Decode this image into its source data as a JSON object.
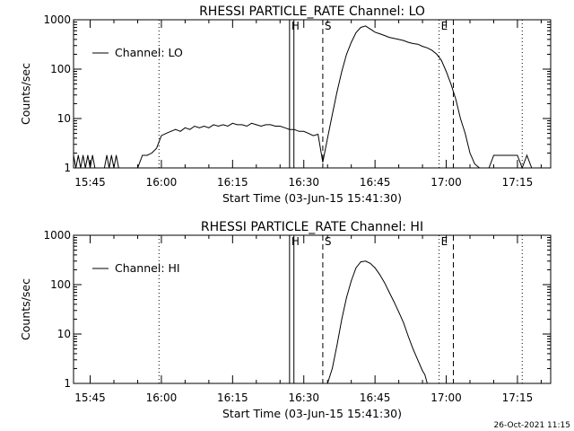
{
  "footer_timestamp": "26-Oct-2021 11:15",
  "chart_data": [
    {
      "type": "line",
      "title": "RHESSI PARTICLE_RATE Channel: LO",
      "xlabel": "Start Time (03-Jun-15 15:41:30)",
      "ylabel": "Counts/sec",
      "legend": "Channel: LO",
      "legend_position": "top-left",
      "y_scale": "log",
      "ylim": [
        1,
        1000
      ],
      "y_ticks": [
        {
          "v": 1,
          "label": "1"
        },
        {
          "v": 10,
          "label": "10"
        },
        {
          "v": 100,
          "label": "100"
        },
        {
          "v": 1000,
          "label": "1000"
        }
      ],
      "xlim": [
        "15:41:30",
        "17:22:00"
      ],
      "x_ticks": [
        {
          "t": "15:45",
          "label": "15:45"
        },
        {
          "t": "16:00",
          "label": "16:00"
        },
        {
          "t": "16:15",
          "label": "16:15"
        },
        {
          "t": "16:30",
          "label": "16:30"
        },
        {
          "t": "16:45",
          "label": "16:45"
        },
        {
          "t": "17:00",
          "label": "17:00"
        },
        {
          "t": "17:15",
          "label": "17:15"
        }
      ],
      "markers": [
        {
          "t": "15:59:30",
          "style": "dotted",
          "label": ""
        },
        {
          "t": "16:27:00",
          "style": "solid",
          "label": "H"
        },
        {
          "t": "16:27:55",
          "style": "solid",
          "label": ""
        },
        {
          "t": "16:34:00",
          "style": "dashed",
          "label": "S"
        },
        {
          "t": "16:58:30",
          "style": "dotted",
          "label": "E"
        },
        {
          "t": "17:01:30",
          "style": "dashed",
          "label": ""
        },
        {
          "t": "17:16:00",
          "style": "dotted",
          "label": ""
        }
      ],
      "series": [
        {
          "x": [
            "15:41:30",
            "15:42:00",
            "15:42:30",
            "15:43:00",
            "15:43:30",
            "15:44:00",
            "15:44:30",
            "15:45:00",
            "15:45:30",
            "15:46:00",
            "15:46:30",
            "15:47:00",
            "15:47:30",
            "15:48:00",
            "15:48:30",
            "15:49:00",
            "15:49:30",
            "15:50:00",
            "15:50:30",
            "15:51:00",
            "15:52:00",
            "15:53:00",
            "15:54:00",
            "15:55:00",
            "15:56:00",
            "15:56:30",
            "15:57:00",
            "15:58:00",
            "15:59:00",
            "16:00:00",
            "16:01:00",
            "16:02:00",
            "16:03:00",
            "16:04:00",
            "16:05:00",
            "16:06:00",
            "16:07:00",
            "16:08:00",
            "16:09:00",
            "16:10:00",
            "16:11:00",
            "16:12:00",
            "16:13:00",
            "16:14:00",
            "16:15:00",
            "16:16:00",
            "16:17:00",
            "16:18:00",
            "16:19:00",
            "16:20:00",
            "16:21:00",
            "16:22:00",
            "16:23:00",
            "16:24:00",
            "16:25:00",
            "16:26:00",
            "16:27:00",
            "16:28:00",
            "16:29:00",
            "16:30:00",
            "16:31:00",
            "16:32:00",
            "16:33:00",
            "16:34:00",
            "16:35:00",
            "16:36:00",
            "16:37:00",
            "16:38:00",
            "16:39:00",
            "16:40:00",
            "16:41:00",
            "16:42:00",
            "16:43:00",
            "16:44:00",
            "16:45:00",
            "16:46:00",
            "16:47:00",
            "16:48:00",
            "16:49:00",
            "16:50:00",
            "16:51:00",
            "16:52:00",
            "16:53:00",
            "16:54:00",
            "16:55:00",
            "16:56:00",
            "16:57:00",
            "16:58:00",
            "16:59:00",
            "17:00:00",
            "17:01:00",
            "17:02:00",
            "17:03:00",
            "17:04:00",
            "17:05:00",
            "17:06:00",
            "17:07:00",
            "17:08:00",
            "17:09:00",
            "17:10:00",
            "17:11:00",
            "17:12:00",
            "17:13:00",
            "17:14:00",
            "17:15:00",
            "17:16:00",
            "17:17:00",
            "17:18:00",
            "17:19:00",
            "17:20:00",
            "17:21:00",
            "17:22:00"
          ],
          "y": [
            1.8,
            1,
            1.8,
            1,
            1.8,
            1,
            1.8,
            1,
            1.8,
            1,
            1,
            1,
            1,
            1,
            1.8,
            1,
            1.8,
            1,
            1.8,
            1,
            1,
            1,
            1,
            1,
            1.8,
            1.8,
            1.8,
            2,
            2.5,
            4.5,
            5,
            5.5,
            6,
            5.5,
            6.5,
            6,
            7,
            6.5,
            7,
            6.5,
            7.5,
            7,
            7.5,
            7,
            8,
            7.5,
            7.5,
            7,
            8,
            7.5,
            7,
            7.5,
            7.5,
            7,
            7,
            6.5,
            6,
            6,
            5.5,
            5.5,
            5,
            4.5,
            4.8,
            1.3,
            4,
            12,
            35,
            90,
            200,
            350,
            550,
            700,
            750,
            650,
            560,
            520,
            480,
            440,
            420,
            400,
            380,
            350,
            330,
            320,
            290,
            270,
            240,
            200,
            150,
            90,
            50,
            25,
            10,
            5,
            2,
            1.2,
            1,
            1,
            1,
            1.8,
            1.8,
            1.8,
            1.8,
            1.8,
            1.8,
            1,
            1.8,
            1,
            1,
            1,
            1,
            1
          ]
        }
      ]
    },
    {
      "type": "line",
      "title": "RHESSI PARTICLE_RATE Channel: HI",
      "xlabel": "Start Time (03-Jun-15 15:41:30)",
      "ylabel": "Counts/sec",
      "legend": "Channel: HI",
      "legend_position": "top-left",
      "y_scale": "log",
      "ylim": [
        1,
        1000
      ],
      "y_ticks": [
        {
          "v": 1,
          "label": "1"
        },
        {
          "v": 10,
          "label": "10"
        },
        {
          "v": 100,
          "label": "100"
        },
        {
          "v": 1000,
          "label": "1000"
        }
      ],
      "xlim": [
        "15:41:30",
        "17:22:00"
      ],
      "x_ticks": [
        {
          "t": "15:45",
          "label": "15:45"
        },
        {
          "t": "16:00",
          "label": "16:00"
        },
        {
          "t": "16:15",
          "label": "16:15"
        },
        {
          "t": "16:30",
          "label": "16:30"
        },
        {
          "t": "16:45",
          "label": "16:45"
        },
        {
          "t": "17:00",
          "label": "17:00"
        },
        {
          "t": "17:15",
          "label": "17:15"
        }
      ],
      "markers": [
        {
          "t": "15:59:30",
          "style": "dotted",
          "label": ""
        },
        {
          "t": "16:27:00",
          "style": "solid",
          "label": "H"
        },
        {
          "t": "16:27:55",
          "style": "solid",
          "label": ""
        },
        {
          "t": "16:34:00",
          "style": "dashed",
          "label": "S"
        },
        {
          "t": "16:58:30",
          "style": "dotted",
          "label": "E"
        },
        {
          "t": "17:01:30",
          "style": "dashed",
          "label": ""
        },
        {
          "t": "17:16:00",
          "style": "dotted",
          "label": ""
        }
      ],
      "series": [
        {
          "x": [
            "16:35:00",
            "16:36:00",
            "16:37:00",
            "16:38:00",
            "16:39:00",
            "16:40:00",
            "16:41:00",
            "16:42:00",
            "16:43:00",
            "16:44:00",
            "16:45:00",
            "16:46:00",
            "16:47:00",
            "16:48:00",
            "16:49:00",
            "16:50:00",
            "16:51:00",
            "16:52:00",
            "16:53:00",
            "16:54:00",
            "16:55:00",
            "16:55:30",
            "16:56:00"
          ],
          "y": [
            1,
            2,
            6,
            20,
            55,
            120,
            220,
            290,
            300,
            270,
            220,
            160,
            110,
            70,
            45,
            28,
            17,
            9,
            5,
            3,
            1.8,
            1.5,
            1
          ]
        }
      ]
    }
  ]
}
